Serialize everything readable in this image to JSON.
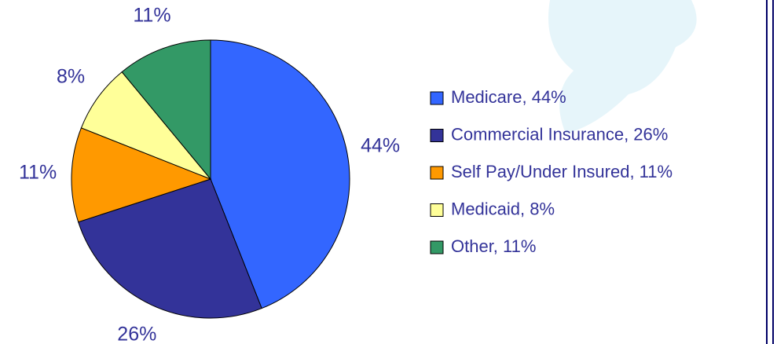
{
  "chart_data": {
    "type": "pie",
    "categories": [
      "Medicare, 44%",
      "Commercial Insurance, 26%",
      "Self Pay/Under Insured, 11%",
      "Medicaid, 8%",
      "Other, 11%"
    ],
    "values": [
      44,
      26,
      11,
      8,
      11
    ],
    "value_labels": [
      "44%",
      "26%",
      "11%",
      "8%",
      "11%"
    ],
    "colors": [
      "#3366ff",
      "#333399",
      "#ff9900",
      "#ffff99",
      "#339966"
    ],
    "legend": "right"
  }
}
